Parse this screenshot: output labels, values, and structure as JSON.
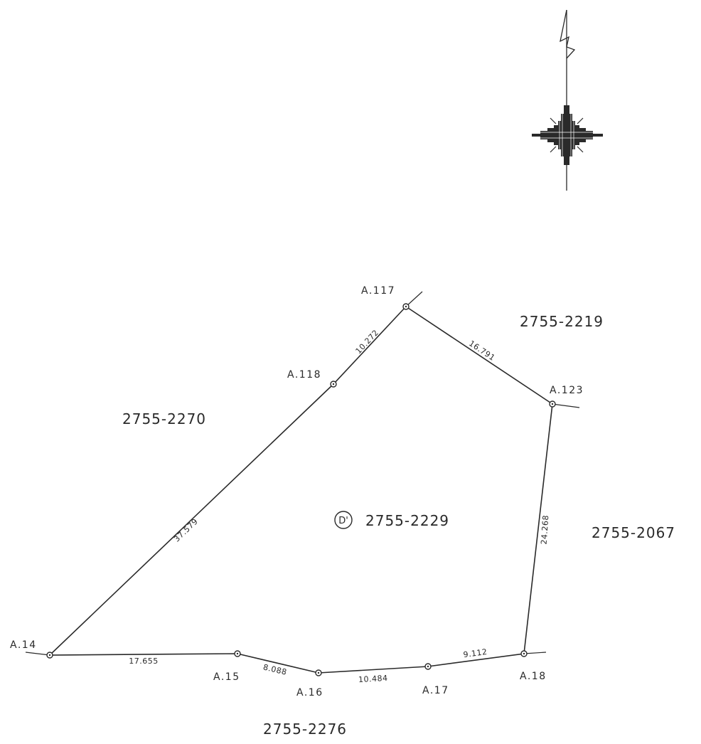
{
  "parcel": {
    "marker": "D'",
    "id": "2755-2229"
  },
  "neighbors": {
    "north_east": "2755-2219",
    "west": "2755-2270",
    "east": "2755-2067",
    "south": "2755-2276"
  },
  "points": [
    {
      "id": "A14",
      "label": "A.14"
    },
    {
      "id": "A118",
      "label": "A.118"
    },
    {
      "id": "A117",
      "label": "A.117"
    },
    {
      "id": "A123",
      "label": "A.123"
    },
    {
      "id": "A18",
      "label": "A.18"
    },
    {
      "id": "A17",
      "label": "A.17"
    },
    {
      "id": "A16",
      "label": "A.16"
    },
    {
      "id": "A15",
      "label": "A.15"
    }
  ],
  "segments": [
    {
      "from": "A14",
      "to": "A118",
      "distance": "37.579"
    },
    {
      "from": "A118",
      "to": "A117",
      "distance": "10.272"
    },
    {
      "from": "A117",
      "to": "A123",
      "distance": "16.791"
    },
    {
      "from": "A123",
      "to": "A18",
      "distance": "24.268"
    },
    {
      "from": "A18",
      "to": "A17",
      "distance": "9.112"
    },
    {
      "from": "A17",
      "to": "A16",
      "distance": "10.484"
    },
    {
      "from": "A16",
      "to": "A15",
      "distance": "8.088"
    },
    {
      "from": "A15",
      "to": "A14",
      "distance": "17.655"
    }
  ],
  "north_arrow": {
    "icon": "north-arrow-icon"
  }
}
